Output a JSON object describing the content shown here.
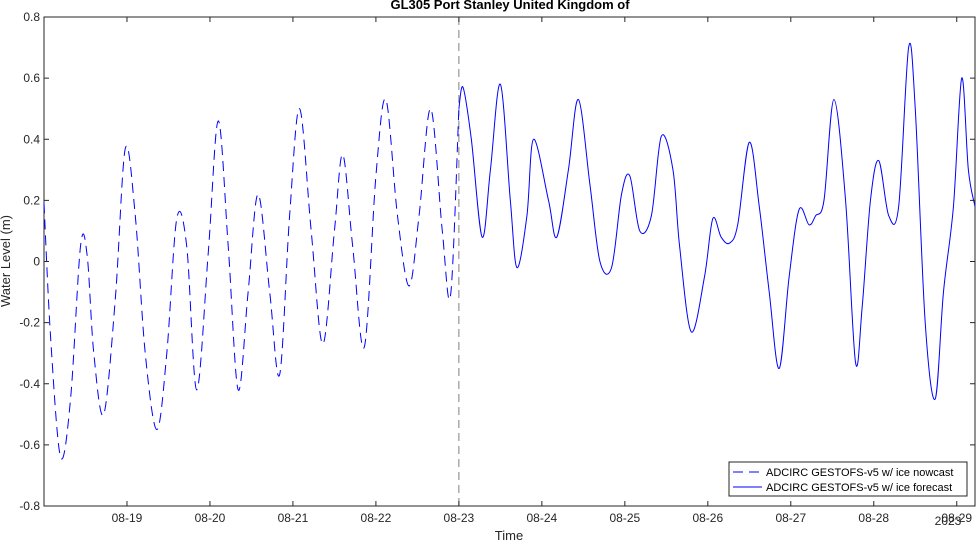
{
  "chart_data": {
    "type": "line",
    "title": "GL305 Port Stanley United Kingdom of",
    "xlabel": "Time",
    "ylabel": "Water Level (m)",
    "ylim": [
      -0.8,
      0.8
    ],
    "yticks": [
      -0.8,
      -0.6,
      -0.4,
      -0.2,
      0,
      0.2,
      0.4,
      0.6,
      0.8
    ],
    "ytick_labels": [
      "-0.8",
      "-0.6",
      "-0.4",
      "-0.2",
      "0",
      "0.2",
      "0.4",
      "0.6",
      "0.8"
    ],
    "xlim_days": [
      18.0,
      29.22
    ],
    "xticks_days": [
      19,
      20,
      21,
      22,
      23,
      24,
      25,
      26,
      27,
      28,
      29
    ],
    "xtick_labels": [
      "08-19",
      "08-20",
      "08-21",
      "08-22",
      "08-23",
      "08-24",
      "08-25",
      "08-26",
      "08-27",
      "08-28",
      "08-29"
    ],
    "x_secondary_label": "2023",
    "nowcast_boundary_day": 23.0,
    "legend_location": "bottom-right",
    "grid": false,
    "series": [
      {
        "name": "ADCIRC GESTOFS-v5 w/ ice nowcast",
        "style": "dashed",
        "color": "#0000ff",
        "x": [
          18.0,
          18.08,
          18.2,
          18.32,
          18.44,
          18.52,
          18.6,
          18.72,
          18.86,
          18.98,
          19.1,
          19.22,
          19.36,
          19.48,
          19.6,
          19.72,
          19.84,
          19.98,
          20.1,
          20.22,
          20.34,
          20.46,
          20.58,
          20.72,
          20.84,
          20.96,
          21.08,
          21.22,
          21.36,
          21.5,
          21.6,
          21.72,
          21.86,
          22.0,
          22.12,
          22.26,
          22.4,
          22.52,
          22.66,
          22.8,
          22.9,
          23.0
        ],
        "y": [
          0.19,
          -0.25,
          -0.64,
          -0.45,
          0.05,
          0.02,
          -0.3,
          -0.5,
          -0.12,
          0.37,
          0.15,
          -0.3,
          -0.55,
          -0.3,
          0.14,
          0.05,
          -0.42,
          0.03,
          0.46,
          0.05,
          -0.42,
          -0.1,
          0.22,
          -0.1,
          -0.37,
          0.15,
          0.5,
          0.1,
          -0.27,
          0.1,
          0.35,
          0.05,
          -0.28,
          0.28,
          0.53,
          0.15,
          -0.08,
          0.15,
          0.5,
          0.1,
          -0.11,
          0.5
        ]
      },
      {
        "name": "ADCIRC GESTOFS-v5 w/ ice forecast",
        "style": "solid",
        "color": "#0000ff",
        "x": [
          23.0,
          23.05,
          23.15,
          23.28,
          23.38,
          23.5,
          23.62,
          23.7,
          23.82,
          23.9,
          24.08,
          24.18,
          24.32,
          24.44,
          24.58,
          24.7,
          24.84,
          24.96,
          25.06,
          25.18,
          25.32,
          25.44,
          25.58,
          25.66,
          25.8,
          25.96,
          26.06,
          26.16,
          26.26,
          26.36,
          26.5,
          26.62,
          26.74,
          26.86,
          26.98,
          27.1,
          27.22,
          27.3,
          27.4,
          27.52,
          27.66,
          27.78,
          27.86,
          27.96,
          28.06,
          28.18,
          28.3,
          28.42,
          28.5,
          28.62,
          28.74,
          28.84,
          28.96,
          29.06,
          29.14,
          29.22
        ],
        "y": [
          0.5,
          0.57,
          0.4,
          0.08,
          0.3,
          0.58,
          0.2,
          -0.02,
          0.15,
          0.4,
          0.2,
          0.08,
          0.3,
          0.53,
          0.25,
          0.0,
          -0.02,
          0.22,
          0.28,
          0.1,
          0.15,
          0.41,
          0.3,
          0.05,
          -0.23,
          -0.05,
          0.14,
          0.08,
          0.06,
          0.12,
          0.39,
          0.18,
          -0.1,
          -0.35,
          -0.05,
          0.17,
          0.12,
          0.15,
          0.2,
          0.53,
          0.2,
          -0.33,
          -0.15,
          0.2,
          0.33,
          0.15,
          0.18,
          0.7,
          0.5,
          -0.2,
          -0.45,
          -0.1,
          0.18,
          0.6,
          0.3,
          0.18
        ]
      }
    ]
  }
}
